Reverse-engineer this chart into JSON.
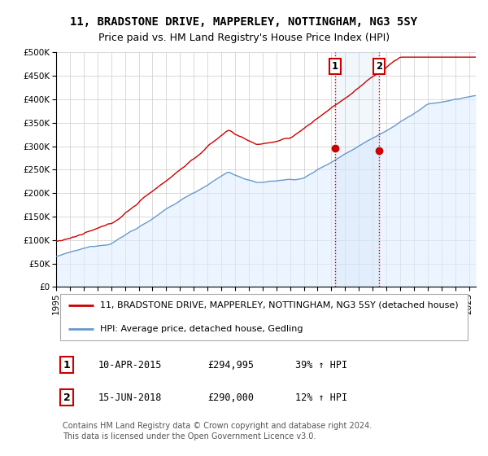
{
  "title": "11, BRADSTONE DRIVE, MAPPERLEY, NOTTINGHAM, NG3 5SY",
  "subtitle": "Price paid vs. HM Land Registry's House Price Index (HPI)",
  "ylim": [
    0,
    500000
  ],
  "yticks": [
    0,
    50000,
    100000,
    150000,
    200000,
    250000,
    300000,
    350000,
    400000,
    450000,
    500000
  ],
  "ytick_labels": [
    "£0",
    "£50K",
    "£100K",
    "£150K",
    "£200K",
    "£250K",
    "£300K",
    "£350K",
    "£400K",
    "£450K",
    "£500K"
  ],
  "xlim_start": 1995,
  "xlim_end": 2025.5,
  "grid_color": "#cccccc",
  "red_line_color": "#cc0000",
  "blue_line_color": "#6699cc",
  "blue_fill_color": "#ddeeff",
  "vline_color": "#cc0000",
  "marker1_date": 2015.27,
  "marker2_date": 2018.45,
  "marker1_price": 294995,
  "marker2_price": 290000,
  "legend_label_red": "11, BRADSTONE DRIVE, MAPPERLEY, NOTTINGHAM, NG3 5SY (detached house)",
  "legend_label_blue": "HPI: Average price, detached house, Gedling",
  "annotation1_label": "1",
  "annotation2_label": "2",
  "table_row1": [
    "1",
    "10-APR-2015",
    "£294,995",
    "39% ↑ HPI"
  ],
  "table_row2": [
    "2",
    "15-JUN-2018",
    "£290,000",
    "12% ↑ HPI"
  ],
  "footer": "Contains HM Land Registry data © Crown copyright and database right 2024.\nThis data is licensed under the Open Government Licence v3.0.",
  "title_fontsize": 10,
  "subtitle_fontsize": 9,
  "tick_fontsize": 7.5,
  "legend_fontsize": 8,
  "table_fontsize": 8.5,
  "footer_fontsize": 7
}
